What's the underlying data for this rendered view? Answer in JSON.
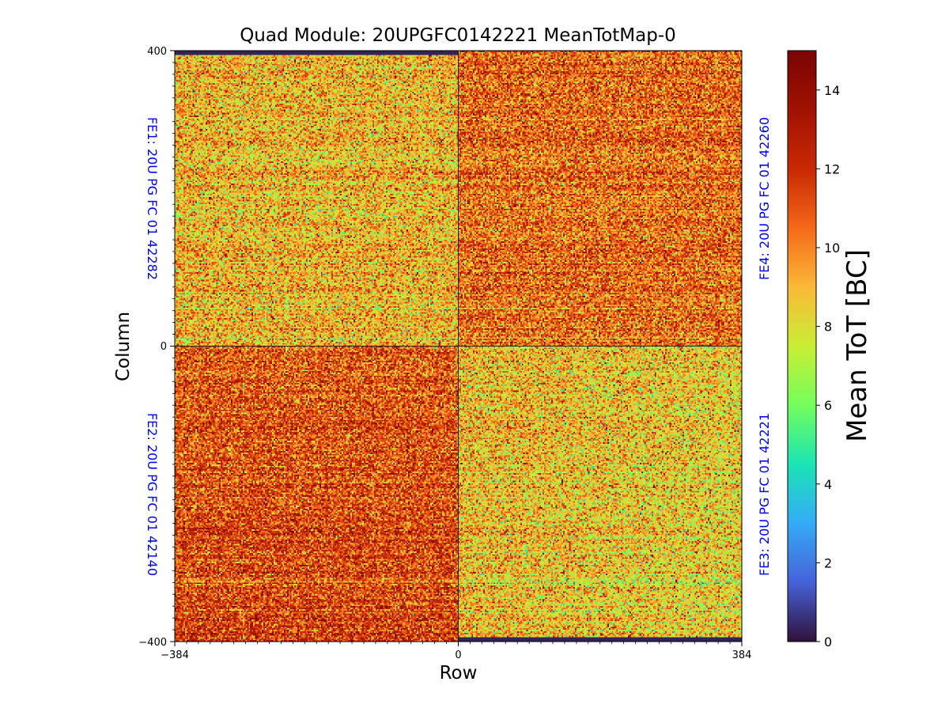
{
  "chart_data": {
    "type": "heatmap",
    "title": "Quad Module: 20UPGFC0142221 MeanTotMap-0",
    "xlabel": "Row",
    "ylabel": "Column",
    "xlim": [
      -384,
      384
    ],
    "ylim": [
      -400,
      400
    ],
    "x_ticks": [
      "−384",
      "0",
      "384"
    ],
    "y_ticks": [
      "400",
      "0",
      "−400"
    ],
    "colorbar": {
      "label": "Mean ToT [BC]",
      "range": [
        0,
        15
      ],
      "ticks": [
        "0",
        "2",
        "4",
        "6",
        "8",
        "10",
        "12",
        "14"
      ],
      "colormap": "turbo"
    },
    "quadrants": [
      {
        "name": "FE1: 20U PG FC 01 42282",
        "position": "top-left",
        "approx_mean_tot": 9.0
      },
      {
        "name": "FE4: 20U PG FC 01 42260",
        "position": "top-right",
        "approx_mean_tot": 10.5
      },
      {
        "name": "FE2: 20U PG FC 01 42140",
        "position": "bottom-left",
        "approx_mean_tot": 10.8
      },
      {
        "name": "FE3: 20U PG FC 01 42221",
        "position": "bottom-right",
        "approx_mean_tot": 9.0
      }
    ]
  }
}
